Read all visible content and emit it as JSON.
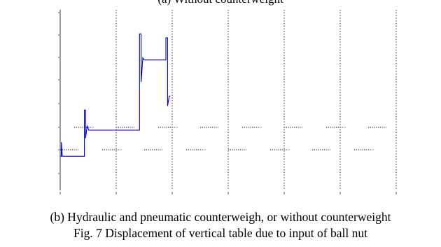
{
  "top_caption": "(a) Without counterweight",
  "captions": {
    "sub": "(b) Hydraulic and pneumatic counterweigh, or without counterweight",
    "figure": "Fig. 7 Displacement of vertical table due to input of ball nut"
  },
  "chart_data": {
    "type": "line",
    "title": "",
    "xlabel": "",
    "ylabel": "",
    "xlim": [
      0,
      30
    ],
    "ylim": [
      -1.5,
      3
    ],
    "grid": true,
    "colors": {
      "series": "#0000cc",
      "axes": "#000000",
      "grid": "#000000"
    },
    "series": [
      {
        "x": [
          0,
          0.1,
          0.1,
          0.15,
          0.2,
          2.2,
          2.2,
          2.3,
          2.3,
          2.45,
          2.6,
          7.2,
          7.2,
          7.35,
          7.35,
          7.5,
          7.6,
          9.6,
          9.6,
          9.75,
          9.75,
          9.9,
          10
        ],
        "y": [
          -0.65,
          -0.65,
          -0.3,
          -0.5,
          -0.65,
          -0.65,
          0.5,
          0.5,
          -0.2,
          0.1,
          0,
          0,
          2.4,
          2.4,
          1.2,
          1.8,
          1.75,
          1.75,
          2.3,
          2.3,
          0.6,
          0.85,
          0.85
        ]
      }
    ]
  }
}
